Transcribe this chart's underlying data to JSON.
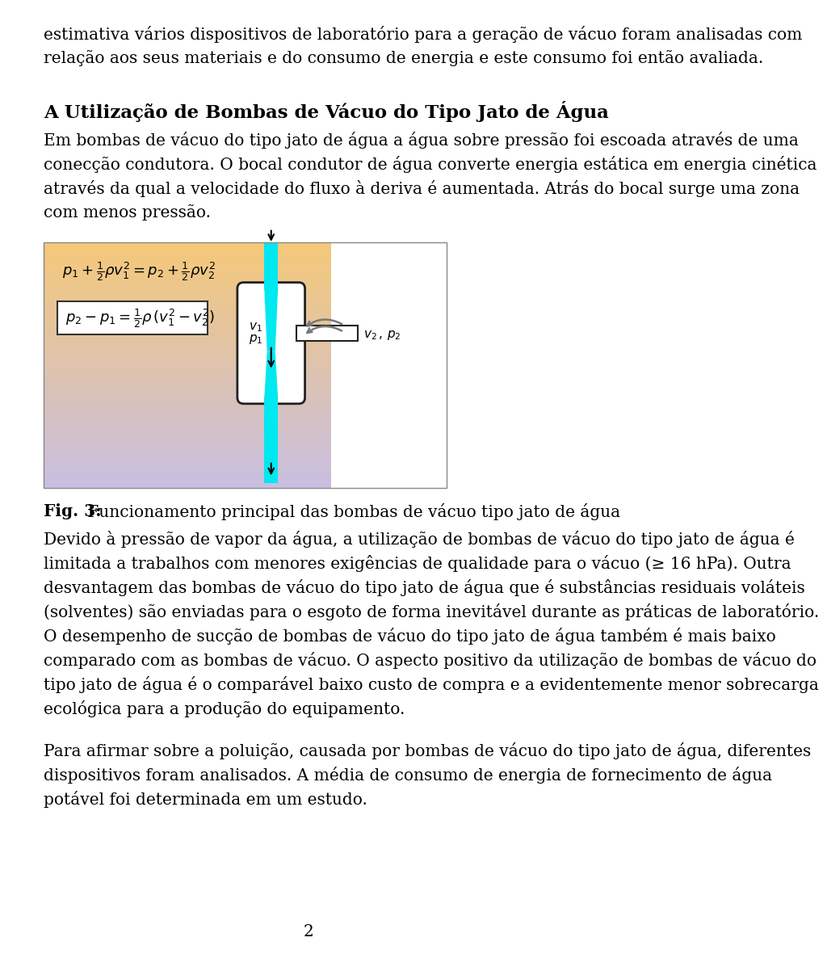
{
  "page_bg": "#ffffff",
  "text_color": "#000000",
  "page_number": "2",
  "line1": "estimativa vários dispositivos de laboratório para a geração de vácuo foram analisadas com",
  "line2": "relação aos seus materiais e do consumo de energia e este consumo foi então avaliada.",
  "heading": "A Utilização de Bombas de Vácuo do Tipo Jato de Água",
  "para1_lines": [
    "Em bombas de vácuo do tipo jato de água a água sobre pressão foi escoada através de uma",
    "conecção condutora. O bocal condutor de água converte energia estática em energia cinética",
    "através da qual a velocidade do fluxo à deriva é aumentada. Atrás do bocal surge uma zona",
    "com menos pressão."
  ],
  "fig_caption_bold": "Fig. 3:",
  "fig_caption_rest": " Funcionamento principal das bombas de vácuo tipo jato de água",
  "para2_lines": [
    "Devido à pressão de vapor da água, a utilização de bombas de vácuo do tipo jato de água é",
    "limitada a trabalhos com menores exigências de qualidade para o vácuo (≥ 16 hPa). Outra",
    "desvantagem das bombas de vácuo do tipo jato de água que é substâncias residuais voláteis",
    "(solventes) são enviadas para o esgoto de forma inevitável durante as práticas de laboratório.",
    "O desempenho de sucção de bombas de vácuo do tipo jato de água também é mais baixo",
    "comparado com as bombas de vácuo. O aspecto positivo da utilização de bombas de vácuo do",
    "tipo jato de água é o comparável baixo custo de compra e a evidentemente menor sobrecarga",
    "ecológica para a produção do equipamento."
  ],
  "para3_lines": [
    "Para afirmar sobre a poluição, causada por bombas de vácuo do tipo jato de água, diferentes",
    "dispositivos foram analisados. A média de consumo de energia de fornecimento de água",
    "potável foi determinada em um estudo."
  ],
  "fig_pipe_color": "#00e8f0",
  "fig_body_facecolor": "#ffffff",
  "fig_body_edgecolor": "#222222"
}
